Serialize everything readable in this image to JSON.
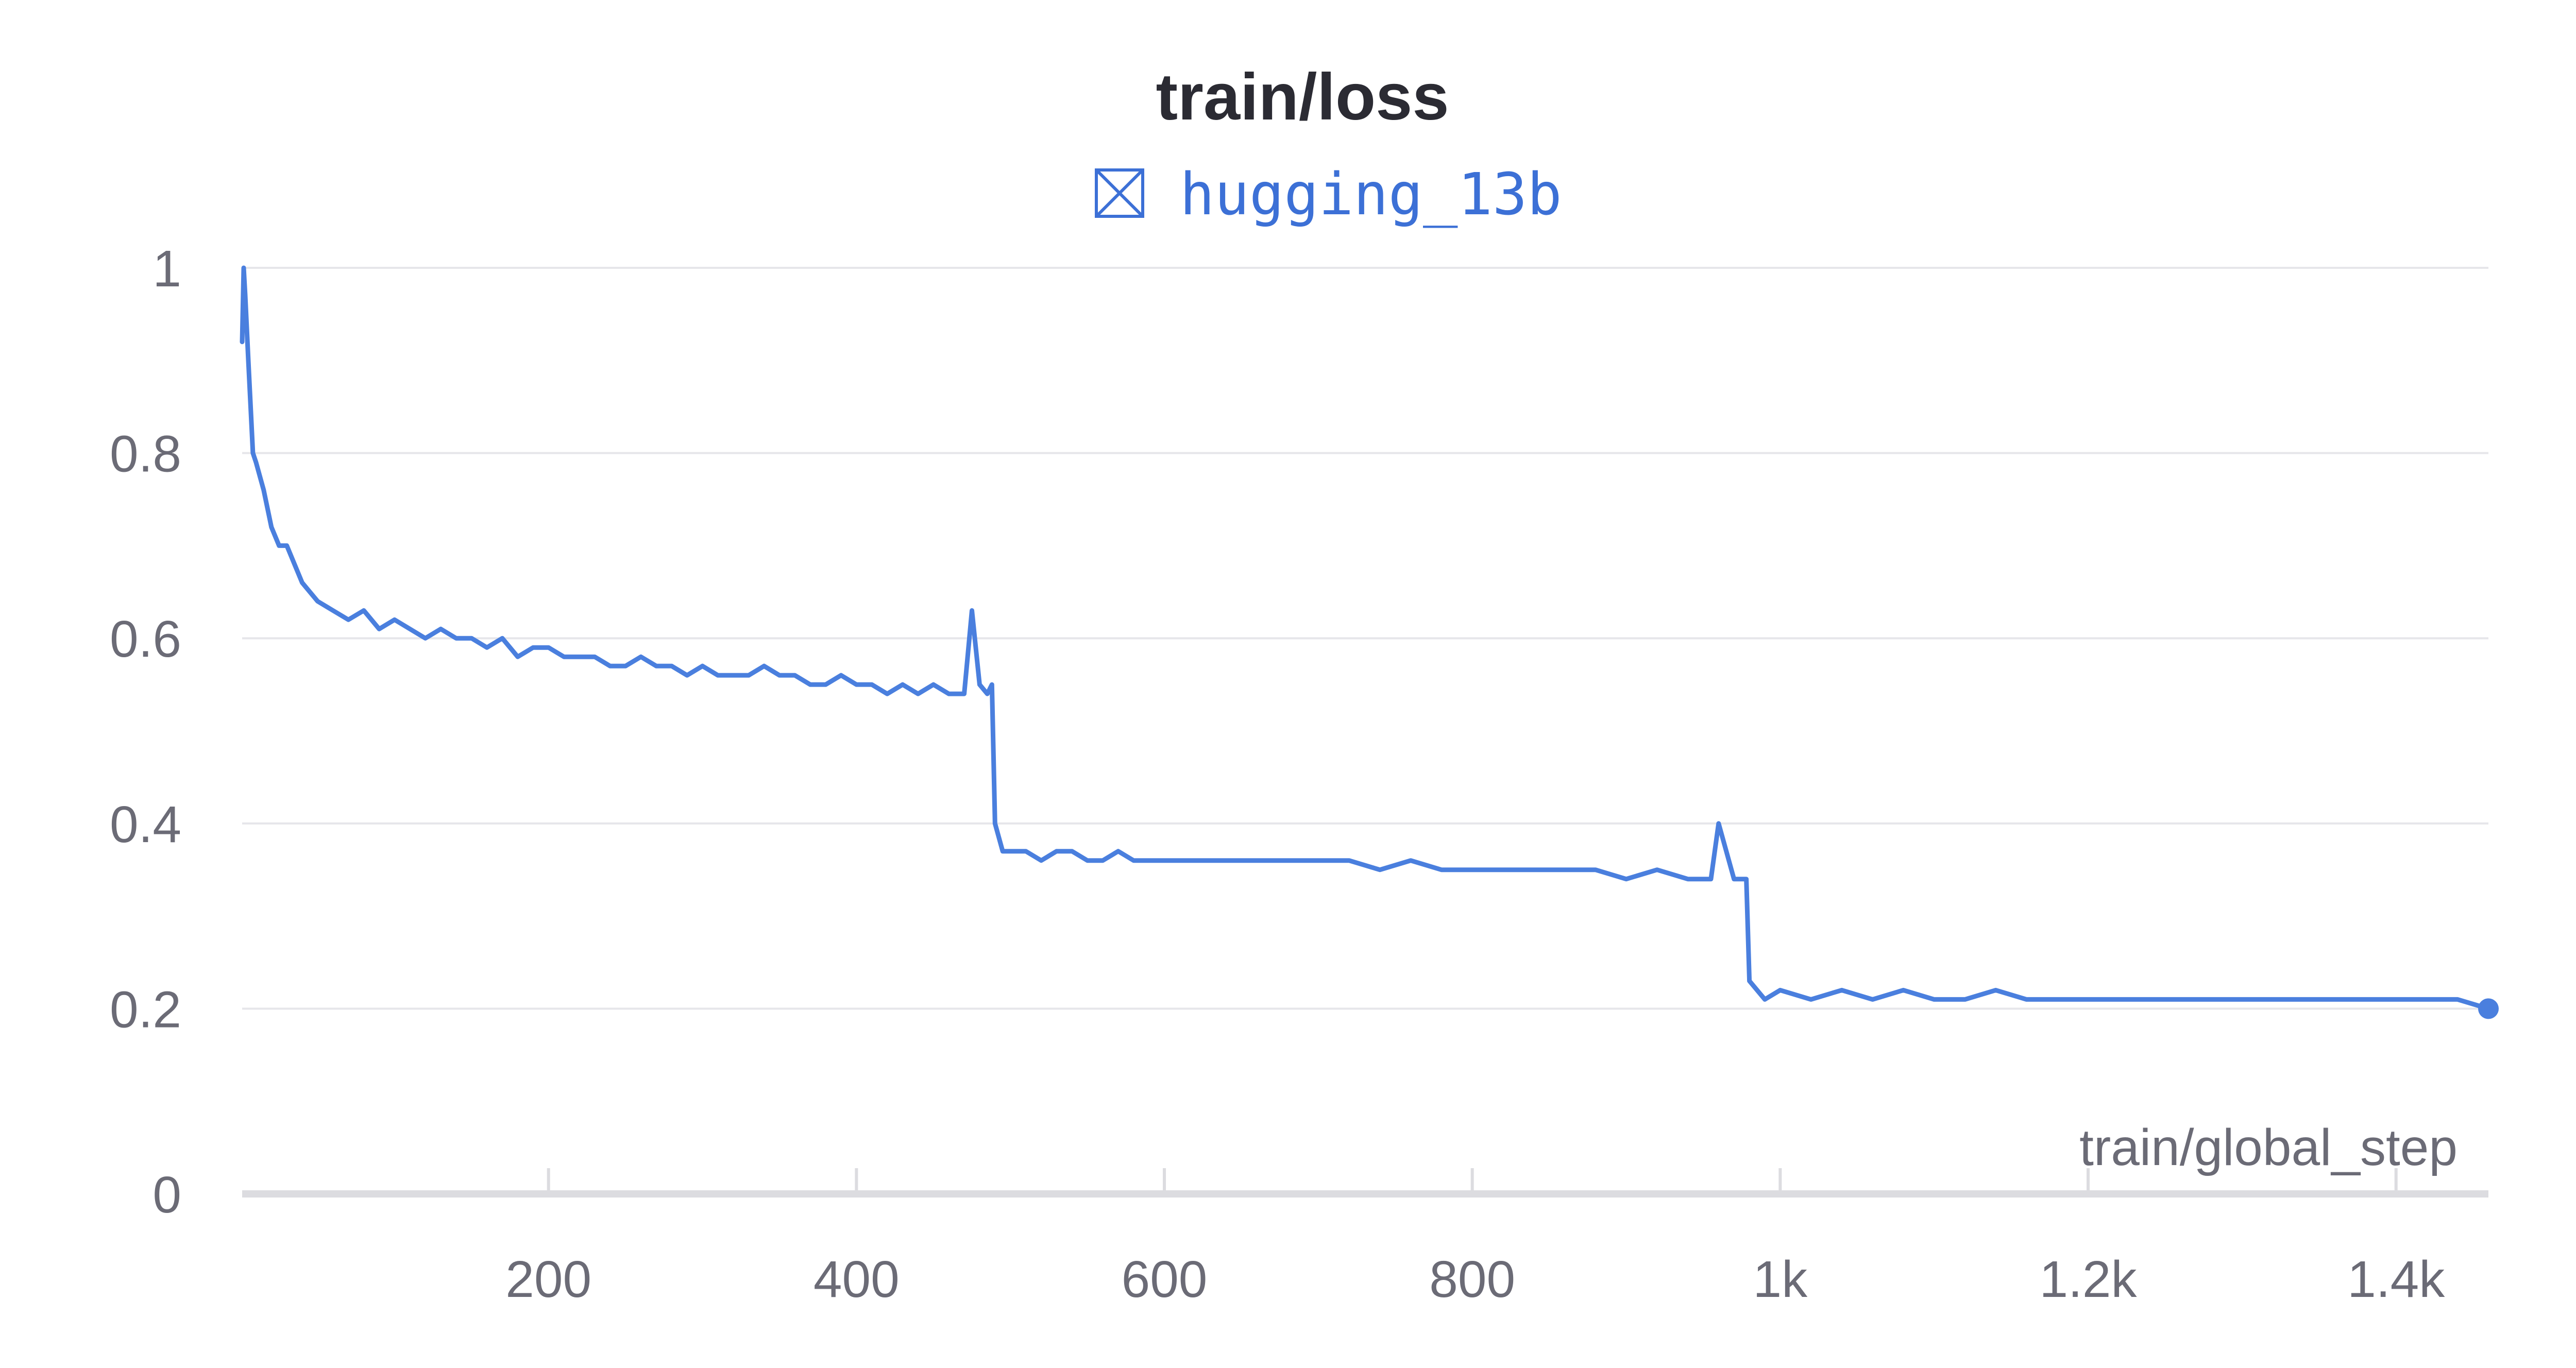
{
  "chart_data": {
    "type": "line",
    "title": "train/loss",
    "xlabel": "train/global_step",
    "ylabel": "",
    "legend_position": "top-center",
    "grid": true,
    "xlim": [
      1,
      1460
    ],
    "ylim": [
      0,
      1
    ],
    "x_ticks": [
      {
        "value": 200,
        "label": "200"
      },
      {
        "value": 400,
        "label": "400"
      },
      {
        "value": 600,
        "label": "600"
      },
      {
        "value": 800,
        "label": "800"
      },
      {
        "value": 1000,
        "label": "1k"
      },
      {
        "value": 1200,
        "label": "1.2k"
      },
      {
        "value": 1400,
        "label": "1.4k"
      }
    ],
    "y_ticks": [
      {
        "value": 0,
        "label": "0"
      },
      {
        "value": 0.2,
        "label": "0.2"
      },
      {
        "value": 0.4,
        "label": "0.4"
      },
      {
        "value": 0.6,
        "label": "0.6"
      },
      {
        "value": 0.8,
        "label": "0.8"
      },
      {
        "value": 1,
        "label": "1"
      }
    ],
    "series": [
      {
        "name": "hugging_13b",
        "color": "#4a7fde",
        "x": [
          1,
          2,
          3,
          5,
          8,
          10,
          15,
          20,
          25,
          30,
          35,
          40,
          50,
          60,
          70,
          80,
          90,
          100,
          110,
          120,
          130,
          140,
          150,
          160,
          170,
          180,
          190,
          200,
          210,
          220,
          230,
          240,
          250,
          260,
          270,
          280,
          290,
          300,
          310,
          320,
          330,
          340,
          350,
          360,
          370,
          380,
          390,
          400,
          410,
          420,
          430,
          440,
          450,
          460,
          470,
          475,
          480,
          485,
          488,
          490,
          495,
          500,
          510,
          520,
          530,
          540,
          550,
          560,
          570,
          580,
          590,
          600,
          620,
          640,
          660,
          680,
          700,
          720,
          740,
          760,
          780,
          800,
          820,
          840,
          860,
          880,
          900,
          920,
          940,
          955,
          960,
          970,
          975,
          978,
          980,
          985,
          990,
          1000,
          1020,
          1040,
          1060,
          1080,
          1100,
          1120,
          1140,
          1160,
          1180,
          1200,
          1220,
          1240,
          1260,
          1280,
          1300,
          1320,
          1340,
          1360,
          1380,
          1400,
          1420,
          1440,
          1460
        ],
        "values": [
          0.92,
          1.0,
          0.97,
          0.9,
          0.8,
          0.79,
          0.76,
          0.72,
          0.7,
          0.7,
          0.68,
          0.66,
          0.64,
          0.63,
          0.62,
          0.63,
          0.61,
          0.62,
          0.61,
          0.6,
          0.61,
          0.6,
          0.6,
          0.59,
          0.6,
          0.58,
          0.59,
          0.59,
          0.58,
          0.58,
          0.58,
          0.57,
          0.57,
          0.58,
          0.57,
          0.57,
          0.56,
          0.57,
          0.56,
          0.56,
          0.56,
          0.57,
          0.56,
          0.56,
          0.55,
          0.55,
          0.56,
          0.55,
          0.55,
          0.54,
          0.55,
          0.54,
          0.55,
          0.54,
          0.54,
          0.63,
          0.55,
          0.54,
          0.55,
          0.4,
          0.37,
          0.37,
          0.37,
          0.36,
          0.37,
          0.37,
          0.36,
          0.36,
          0.37,
          0.36,
          0.36,
          0.36,
          0.36,
          0.36,
          0.36,
          0.36,
          0.36,
          0.36,
          0.35,
          0.36,
          0.35,
          0.35,
          0.35,
          0.35,
          0.35,
          0.35,
          0.34,
          0.35,
          0.34,
          0.34,
          0.4,
          0.34,
          0.34,
          0.34,
          0.23,
          0.22,
          0.21,
          0.22,
          0.21,
          0.22,
          0.21,
          0.22,
          0.21,
          0.21,
          0.22,
          0.21,
          0.21,
          0.21,
          0.21,
          0.21,
          0.21,
          0.21,
          0.21,
          0.21,
          0.21,
          0.21,
          0.21,
          0.21,
          0.21,
          0.21,
          0.2
        ]
      }
    ]
  }
}
